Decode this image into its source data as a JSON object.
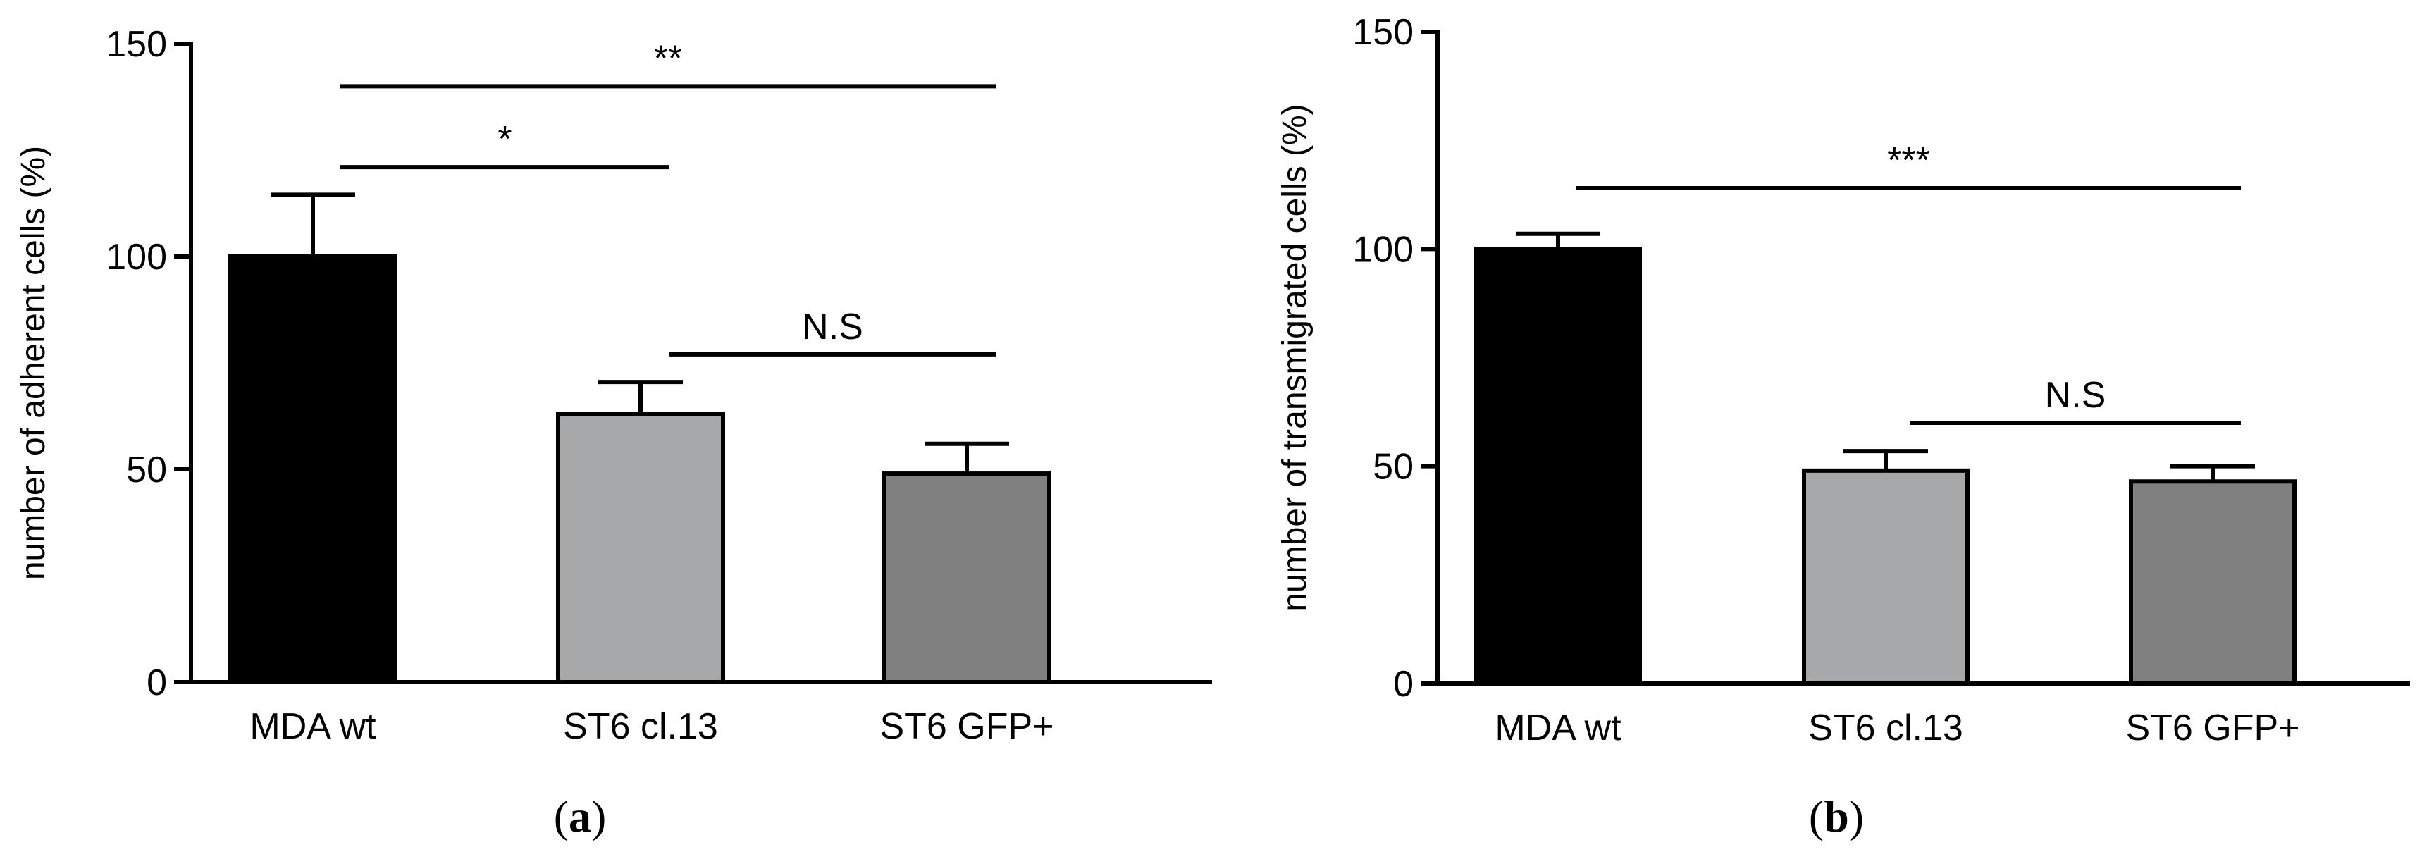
{
  "chart_data": [
    {
      "type": "bar",
      "panel_label": "a",
      "categories": [
        "MDA wt",
        "ST6 cl.13",
        "ST6 GFP+"
      ],
      "values": [
        100,
        63,
        49
      ],
      "errors": [
        14.5,
        7.5,
        7
      ],
      "colors": [
        "#000000",
        "#a7a8aa",
        "#808080"
      ],
      "ylabel": "number of adherent cells (%)",
      "ylim": [
        0,
        150
      ],
      "yticks": [
        0,
        50,
        100,
        150
      ],
      "significance": [
        {
          "from": 0,
          "to": 2,
          "label": "**",
          "level": 140
        },
        {
          "from": 0,
          "to": 1,
          "label": "*",
          "level": 121
        },
        {
          "from": 1,
          "to": 2,
          "label": "N.S",
          "level": 77
        }
      ]
    },
    {
      "type": "bar",
      "panel_label": "b",
      "categories": [
        "MDA wt",
        "ST6 cl.13",
        "ST6 GFP+"
      ],
      "values": [
        100,
        49,
        46.5
      ],
      "errors": [
        3.5,
        4.5,
        3.5
      ],
      "colors": [
        "#000000",
        "#a7a8aa",
        "#808080"
      ],
      "ylabel": "number of transmigrated cells (%)",
      "ylim": [
        0,
        150
      ],
      "yticks": [
        0,
        50,
        100,
        150
      ],
      "significance": [
        {
          "from": 0,
          "to": 2,
          "label": "***",
          "level": 114
        },
        {
          "from": 1,
          "to": 2,
          "label": "N.S",
          "level": 60
        }
      ]
    }
  ]
}
